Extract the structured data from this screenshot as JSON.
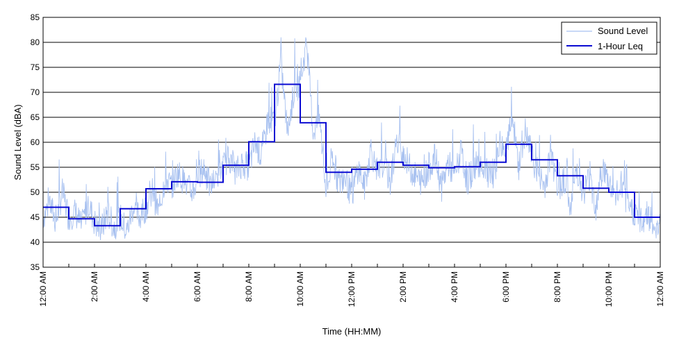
{
  "chart_data": {
    "type": "line",
    "xlabel": "Time (HH:MM)",
    "ylabel": "Sound Level (dBA)",
    "xlim": [
      0,
      24
    ],
    "ylim": [
      35,
      85
    ],
    "y_ticks": [
      35,
      40,
      45,
      50,
      55,
      60,
      65,
      70,
      75,
      80,
      85
    ],
    "x_ticks": [
      0,
      2,
      4,
      6,
      8,
      10,
      12,
      14,
      16,
      18,
      20,
      22,
      24
    ],
    "x_tick_labels": [
      "12:00 AM",
      "2:00 AM",
      "4:00 AM",
      "6:00 AM",
      "8:00 AM",
      "10:00 AM",
      "12:00 PM",
      "2:00 PM",
      "4:00 PM",
      "6:00 PM",
      "8:00 PM",
      "10:00 PM",
      "12:00 AM"
    ],
    "grid": "horizontal",
    "legend_position": "top-right",
    "series": [
      {
        "name": "Sound Level",
        "style": "thin light-blue line",
        "color": "#a8c1f0",
        "x": [
          0.0,
          0.25,
          0.5,
          0.75,
          1.0,
          1.25,
          1.5,
          1.75,
          2.0,
          2.25,
          2.5,
          2.75,
          3.0,
          3.25,
          3.5,
          3.75,
          4.0,
          4.25,
          4.5,
          4.75,
          5.0,
          5.25,
          5.5,
          5.75,
          6.0,
          6.25,
          6.5,
          6.75,
          7.0,
          7.25,
          7.5,
          7.75,
          8.0,
          8.25,
          8.5,
          8.75,
          9.0,
          9.25,
          9.5,
          9.75,
          10.0,
          10.25,
          10.5,
          10.75,
          11.0,
          11.25,
          11.5,
          11.75,
          12.0,
          12.25,
          12.5,
          12.75,
          13.0,
          13.25,
          13.5,
          13.75,
          14.0,
          14.25,
          14.5,
          14.75,
          15.0,
          15.25,
          15.5,
          15.75,
          16.0,
          16.25,
          16.5,
          16.75,
          17.0,
          17.25,
          17.5,
          17.75,
          18.0,
          18.25,
          18.5,
          18.75,
          19.0,
          19.25,
          19.5,
          19.75,
          20.0,
          20.25,
          20.5,
          20.75,
          21.0,
          21.25,
          21.5,
          21.75,
          22.0,
          22.25,
          22.5,
          22.75,
          23.0,
          23.25,
          23.5,
          23.75,
          24.0
        ],
        "values": [
          45,
          48,
          44,
          50,
          45,
          46,
          43,
          48,
          44,
          42,
          46,
          43,
          45,
          42,
          47,
          45,
          47,
          50,
          46,
          53,
          51,
          54,
          52,
          50,
          52,
          55,
          51,
          53,
          55,
          57,
          54,
          56,
          55,
          60,
          57,
          65,
          64,
          76,
          62,
          70,
          72,
          80,
          62,
          65,
          50,
          56,
          52,
          53,
          49,
          55,
          51,
          59,
          53,
          56,
          52,
          60,
          58,
          55,
          53,
          52,
          55,
          57,
          51,
          56,
          53,
          58,
          52,
          55,
          56,
          54,
          52,
          60,
          58,
          65,
          55,
          62,
          57,
          54,
          51,
          58,
          50,
          53,
          47,
          55,
          50,
          53,
          47,
          55,
          52,
          49,
          51,
          47,
          46,
          44,
          46,
          43,
          44
        ]
      },
      {
        "name": "1-Hour Leq",
        "style": "step",
        "color": "#0a0ad2",
        "x": [
          0,
          1,
          2,
          3,
          4,
          5,
          6,
          7,
          8,
          9,
          10,
          11,
          12,
          13,
          14,
          15,
          16,
          17,
          18,
          19,
          20,
          21,
          22,
          23
        ],
        "values": [
          47.0,
          44.7,
          43.3,
          46.7,
          50.7,
          52.1,
          52.0,
          55.4,
          60.1,
          71.6,
          63.9,
          54.0,
          54.6,
          56.0,
          55.4,
          54.9,
          55.1,
          56.0,
          59.6,
          56.5,
          53.3,
          50.8,
          50.0,
          45.0
        ]
      }
    ]
  }
}
